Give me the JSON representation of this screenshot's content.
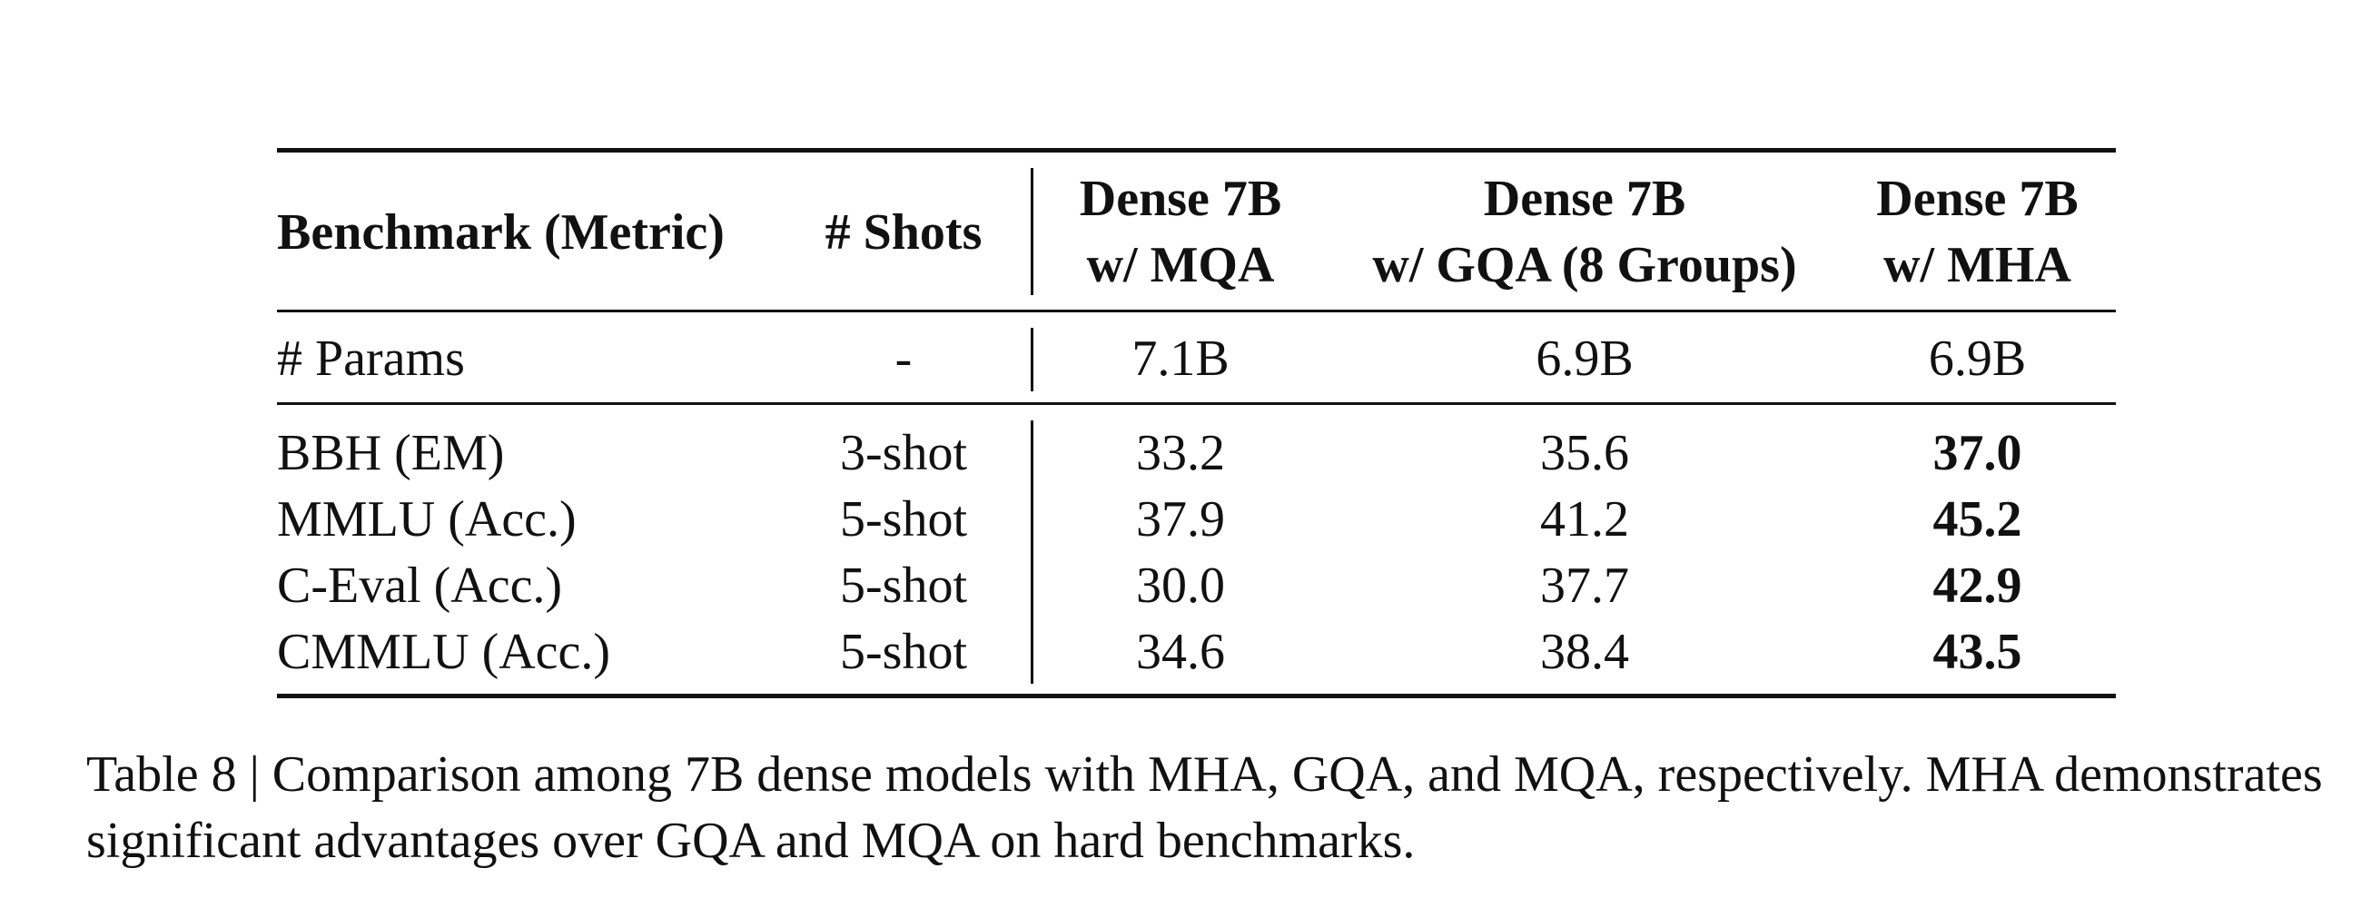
{
  "table": {
    "headers": {
      "benchmark": "Benchmark (Metric)",
      "shots": "# Shots",
      "mqa_line1": "Dense 7B",
      "mqa_line2": "w/ MQA",
      "gqa_line1": "Dense 7B",
      "gqa_line2": "w/ GQA (8 Groups)",
      "mha_line1": "Dense 7B",
      "mha_line2": "w/ MHA"
    },
    "params_row": {
      "label": "# Params",
      "shots": "-",
      "mqa": "7.1B",
      "gqa": "6.9B",
      "mha": "6.9B"
    },
    "rows": [
      {
        "benchmark": "BBH (EM)",
        "shots": "3-shot",
        "mqa": "33.2",
        "gqa": "35.6",
        "mha": "37.0"
      },
      {
        "benchmark": "MMLU (Acc.)",
        "shots": "5-shot",
        "mqa": "37.9",
        "gqa": "41.2",
        "mha": "45.2"
      },
      {
        "benchmark": "C-Eval (Acc.)",
        "shots": "5-shot",
        "mqa": "30.0",
        "gqa": "37.7",
        "mha": "42.9"
      },
      {
        "benchmark": "CMMLU (Acc.)",
        "shots": "5-shot",
        "mqa": "34.6",
        "gqa": "38.4",
        "mha": "43.5"
      }
    ]
  },
  "caption": "Table 8 | Comparison among 7B dense models with MHA, GQA, and MQA, respectively. MHA demonstrates significant advantages over GQA and MQA on hard benchmarks."
}
